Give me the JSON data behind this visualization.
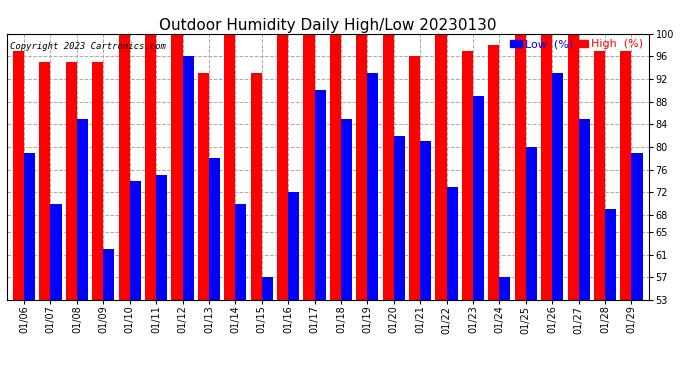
{
  "title": "Outdoor Humidity Daily High/Low 20230130",
  "copyright": "Copyright 2023 Cartronics.com",
  "legend_low": "Low  (%)",
  "legend_high": "High  (%)",
  "dates": [
    "01/06",
    "01/07",
    "01/08",
    "01/09",
    "01/10",
    "01/11",
    "01/12",
    "01/13",
    "01/14",
    "01/15",
    "01/16",
    "01/17",
    "01/18",
    "01/19",
    "01/20",
    "01/21",
    "01/22",
    "01/23",
    "01/24",
    "01/25",
    "01/26",
    "01/27",
    "01/28",
    "01/29"
  ],
  "high": [
    97,
    95,
    95,
    95,
    100,
    100,
    100,
    93,
    100,
    93,
    100,
    100,
    100,
    100,
    100,
    96,
    100,
    97,
    98,
    100,
    100,
    100,
    97,
    97
  ],
  "low": [
    79,
    70,
    85,
    62,
    74,
    75,
    96,
    78,
    70,
    57,
    72,
    90,
    85,
    93,
    82,
    81,
    73,
    89,
    57,
    80,
    93,
    85,
    69,
    79
  ],
  "ylim_min": 53,
  "ylim_max": 100,
  "yticks": [
    53,
    57,
    61,
    65,
    68,
    72,
    76,
    80,
    84,
    88,
    92,
    96,
    100
  ],
  "bar_width": 0.42,
  "high_color": "#ff0000",
  "low_color": "#0000ff",
  "bg_color": "#ffffff",
  "grid_color": "#aaaaaa",
  "title_fontsize": 11,
  "tick_fontsize": 7,
  "legend_fontsize": 8
}
